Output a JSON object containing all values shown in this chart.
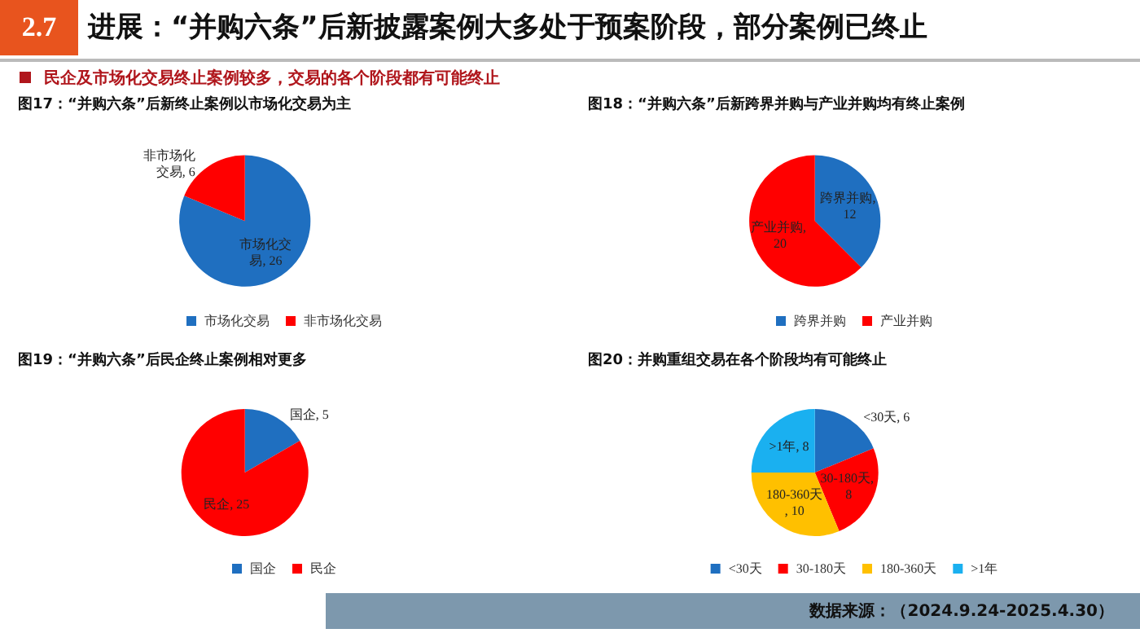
{
  "chart_data": [
    {
      "type": "pie",
      "title": "图17：“并购六条”后新终止案例以市场化交易为主",
      "annotations": [
        "2.7",
        "进展：“并购六条”后新披露案例大多处于预案阶段，部分案例已终止",
        "民企及市场化交易终止案例较多，交易的各个阶段都有可能终止"
      ],
      "categories": [
        "市场化交易",
        "非市场化交易"
      ],
      "values": [
        26,
        6
      ],
      "colors": [
        "#1f6fc0",
        "#ff0000"
      ],
      "value_labels": [
        "市场化交易, 26",
        "非市场化交易, 6"
      ],
      "legend": "bottom"
    },
    {
      "type": "pie",
      "title": "图18：“并购六条”后新跨界并购与产业并购均有终止案例",
      "categories": [
        "跨界并购",
        "产业并购"
      ],
      "values": [
        12,
        20
      ],
      "colors": [
        "#1f6fc0",
        "#ff0000"
      ],
      "value_labels": [
        "跨界并购, 12",
        "产业并购, 20"
      ],
      "legend": "bottom"
    },
    {
      "type": "pie",
      "title": "图19：“并购六条”后民企终止案例相对更多",
      "categories": [
        "国企",
        "民企"
      ],
      "values": [
        5,
        25
      ],
      "colors": [
        "#1f6fc0",
        "#ff0000"
      ],
      "value_labels": [
        "国企, 5",
        "民企, 25"
      ],
      "legend": "bottom"
    },
    {
      "type": "pie",
      "title": "图20：并购重组交易在各个阶段均有可能终止",
      "annotations": [
        "数据来源：（2024.9.24-2025.4.30）"
      ],
      "categories": [
        "<30天",
        "30-180天",
        "180-360天",
        ">1年"
      ],
      "values": [
        6,
        8,
        10,
        8
      ],
      "colors": [
        "#1f6fc0",
        "#ff0000",
        "#ffc000",
        "#1ab0f0"
      ],
      "value_labels": [
        "<30天, 6",
        "30-180天, 8",
        "180-360天, 10",
        ">1年, 8"
      ],
      "legend": "bottom"
    }
  ]
}
